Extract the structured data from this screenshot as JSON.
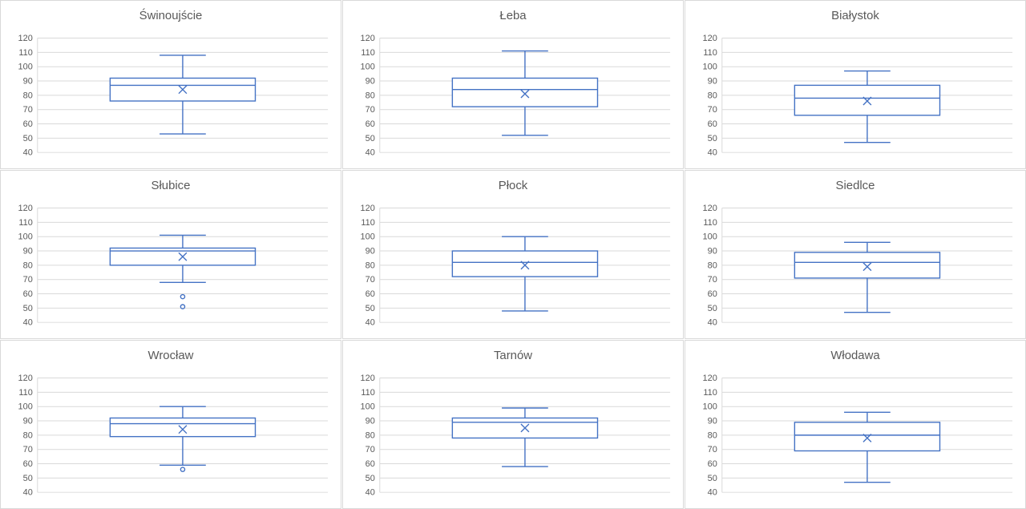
{
  "page": {
    "background": "#ffffff",
    "description_layout": "3x3 grid of box-and-whisker charts"
  },
  "colors": {
    "box_stroke": "#4472c4",
    "gridline": "#d9d9d9",
    "axis_line": "#d9d9d9",
    "text": "#595959",
    "panel_border": "#d9d9d9"
  },
  "chart_data": {
    "type": "boxplot",
    "layout": "3x3_grid",
    "grid": true,
    "legend": "none",
    "xlabel": "",
    "ylabel": "",
    "ylim": [
      40,
      120
    ],
    "ytick_step": 10,
    "yticks": [
      120,
      110,
      100,
      90,
      80,
      70,
      60,
      50,
      40
    ],
    "mean_marker": "x",
    "charts": [
      {
        "title": "Świnoujście",
        "whisker_low": 53,
        "q1": 76,
        "median": 87,
        "q3": 92,
        "whisker_high": 108,
        "mean": 84,
        "outliers": []
      },
      {
        "title": "Łeba",
        "whisker_low": 52,
        "q1": 72,
        "median": 84,
        "q3": 92,
        "whisker_high": 111,
        "mean": 81,
        "outliers": []
      },
      {
        "title": "Białystok",
        "whisker_low": 47,
        "q1": 66,
        "median": 78,
        "q3": 87,
        "whisker_high": 97,
        "mean": 76,
        "outliers": []
      },
      {
        "title": "Słubice",
        "whisker_low": 68,
        "q1": 80,
        "median": 90,
        "q3": 92,
        "whisker_high": 101,
        "mean": 86,
        "outliers": [
          58,
          51
        ]
      },
      {
        "title": "Płock",
        "whisker_low": 48,
        "q1": 72,
        "median": 82,
        "q3": 90,
        "whisker_high": 100,
        "mean": 80,
        "outliers": []
      },
      {
        "title": "Siedlce",
        "whisker_low": 47,
        "q1": 71,
        "median": 82,
        "q3": 89,
        "whisker_high": 96,
        "mean": 79,
        "outliers": []
      },
      {
        "title": "Wrocław",
        "whisker_low": 59,
        "q1": 79,
        "median": 88,
        "q3": 92,
        "whisker_high": 100,
        "mean": 84,
        "outliers": [
          56
        ]
      },
      {
        "title": "Tarnów",
        "whisker_low": 58,
        "q1": 78,
        "median": 89,
        "q3": 92,
        "whisker_high": 99,
        "mean": 85,
        "outliers": []
      },
      {
        "title": "Włodawa",
        "whisker_low": 47,
        "q1": 69,
        "median": 80,
        "q3": 89,
        "whisker_high": 96,
        "mean": 78,
        "outliers": []
      }
    ]
  }
}
